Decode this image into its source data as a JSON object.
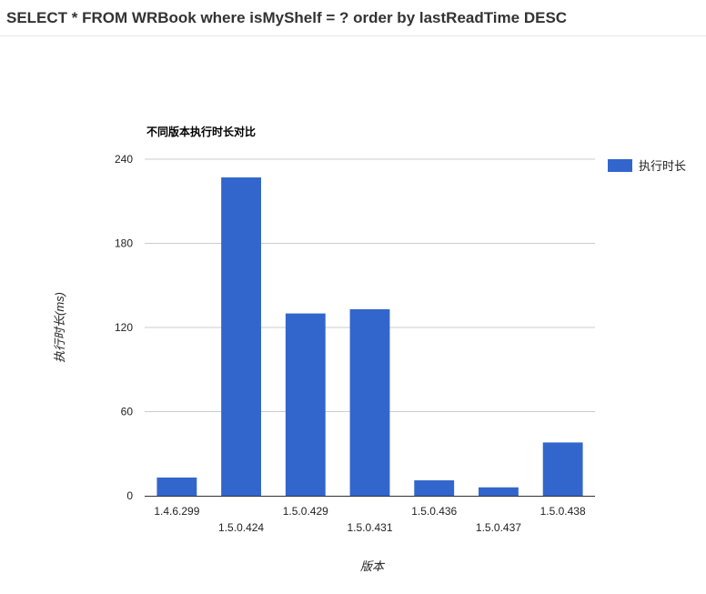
{
  "header": {
    "query": "SELECT * FROM WRBook where isMyShelf = ? order by lastReadTime DESC"
  },
  "chart_data": {
    "type": "bar",
    "title": "不同版本执行时长对比",
    "xlabel": "版本",
    "ylabel": "执行时长(ms)",
    "categories": [
      "1.4.6.299",
      "1.5.0.424",
      "1.5.0.429",
      "1.5.0.431",
      "1.5.0.436",
      "1.5.0.437",
      "1.5.0.438"
    ],
    "series": [
      {
        "name": "执行时长",
        "color": "#3366cc",
        "values": [
          13,
          227,
          130,
          133,
          11,
          6,
          38
        ]
      }
    ],
    "ylim": [
      0,
      240
    ],
    "yticks": [
      0,
      60,
      120,
      180,
      240
    ],
    "grid": true,
    "legend": "right"
  }
}
